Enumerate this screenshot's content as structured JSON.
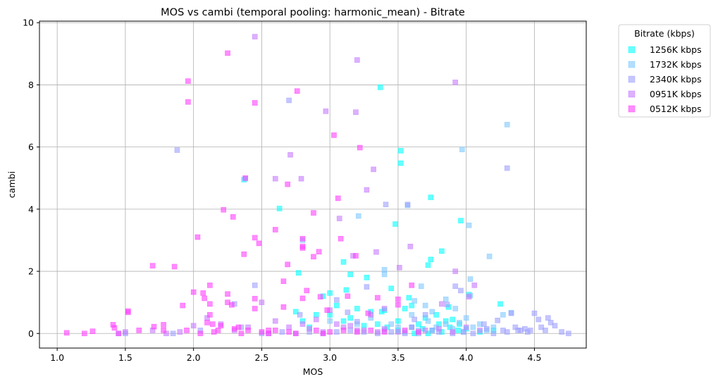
{
  "chart_data": {
    "type": "scatter",
    "title": "MOS vs cambi (temporal pooling: harmonic_mean) - Bitrate",
    "xlabel": "MOS",
    "ylabel": "cambi",
    "xlim": [
      0.87,
      4.88
    ],
    "ylim": [
      -0.47,
      10.05
    ],
    "xticks": [
      "1.0",
      "1.5",
      "2.0",
      "2.5",
      "3.0",
      "3.5",
      "4.0",
      "4.5"
    ],
    "yticks": [
      "0",
      "2",
      "4",
      "6",
      "8",
      "10"
    ],
    "grid": true,
    "marker": "square",
    "legend": {
      "title": "Bitrate (kbps)",
      "placement": "outside-upper-right"
    },
    "series": [
      {
        "name": "1256K kbps",
        "color": "#00ffff",
        "points": [
          [
            2.37,
            4.95
          ],
          [
            2.63,
            4.02
          ],
          [
            2.77,
            1.95
          ],
          [
            3.0,
            1.3
          ],
          [
            3.1,
            2.3
          ],
          [
            3.15,
            1.9
          ],
          [
            3.27,
            1.8
          ],
          [
            3.37,
            7.92
          ],
          [
            3.48,
            3.52
          ],
          [
            3.52,
            5.88
          ],
          [
            3.52,
            5.48
          ],
          [
            3.58,
            1.15
          ],
          [
            3.72,
            2.2
          ],
          [
            3.74,
            4.38
          ],
          [
            3.74,
            2.38
          ],
          [
            3.82,
            2.65
          ],
          [
            3.87,
            0.85
          ],
          [
            3.96,
            3.63
          ],
          [
            3.9,
            0.45
          ],
          [
            3.95,
            0.3
          ],
          [
            4.02,
            1.25
          ],
          [
            4.25,
            0.95
          ],
          [
            2.8,
            0.4
          ],
          [
            2.9,
            0.6
          ],
          [
            3.05,
            0.9
          ],
          [
            3.12,
            1.4
          ],
          [
            3.2,
            0.8
          ],
          [
            3.3,
            0.7
          ],
          [
            3.4,
            0.75
          ],
          [
            3.45,
            1.45
          ],
          [
            3.55,
            0.8
          ],
          [
            3.6,
            0.9
          ],
          [
            3.65,
            0.3
          ],
          [
            3.7,
            0.5
          ],
          [
            3.78,
            0.6
          ],
          [
            3.85,
            0.4
          ],
          [
            2.85,
            0.2
          ],
          [
            2.95,
            1.2
          ],
          [
            3.1,
            0.4
          ],
          [
            3.25,
            0.25
          ],
          [
            3.35,
            0.3
          ],
          [
            3.42,
            0.2
          ],
          [
            3.5,
            0.1
          ],
          [
            3.6,
            0.2
          ],
          [
            3.68,
            0.15
          ],
          [
            3.75,
            0.1
          ],
          [
            3.82,
            0.05
          ],
          [
            3.88,
            0.2
          ],
          [
            3.94,
            0.1
          ],
          [
            4.0,
            0.15
          ],
          [
            4.1,
            0.05
          ],
          [
            4.2,
            0.1
          ],
          [
            2.75,
            0.7
          ],
          [
            3.0,
            0.6
          ],
          [
            3.15,
            0.5
          ],
          [
            3.38,
            0.7
          ],
          [
            3.5,
            0.4
          ],
          [
            3.62,
            0.0
          ],
          [
            3.72,
            0.0
          ],
          [
            3.8,
            0.3
          ]
        ]
      },
      {
        "name": "1732K kbps",
        "color": "#80c8ff",
        "points": [
          [
            2.38,
            4.98
          ],
          [
            2.8,
            3.0
          ],
          [
            3.21,
            3.78
          ],
          [
            3.4,
            1.9
          ],
          [
            3.4,
            2.05
          ],
          [
            3.57,
            4.12
          ],
          [
            3.62,
            1.05
          ],
          [
            3.67,
            1.52
          ],
          [
            3.97,
            5.92
          ],
          [
            4.03,
            1.75
          ],
          [
            4.03,
            1.22
          ],
          [
            4.02,
            3.48
          ],
          [
            4.17,
            2.48
          ],
          [
            4.27,
            0.6
          ],
          [
            4.3,
            6.72
          ],
          [
            4.33,
            0.67
          ],
          [
            3.6,
            0.6
          ],
          [
            3.7,
            0.9
          ],
          [
            3.85,
            1.1
          ],
          [
            3.92,
            0.8
          ],
          [
            4.0,
            0.5
          ],
          [
            4.1,
            0.3
          ],
          [
            3.5,
            0.2
          ],
          [
            3.65,
            0.1
          ],
          [
            3.78,
            0.2
          ],
          [
            3.9,
            0.15
          ],
          [
            3.98,
            0.05
          ],
          [
            4.05,
            0.2
          ],
          [
            4.15,
            0.1
          ],
          [
            3.3,
            0.5
          ],
          [
            3.45,
            0.3
          ],
          [
            3.55,
            0.05
          ],
          [
            3.72,
            0.4
          ],
          [
            3.85,
            0.3
          ],
          [
            3.95,
            0.35
          ],
          [
            4.2,
            0.2
          ],
          [
            3.0,
            0.4
          ],
          [
            3.2,
            0.3
          ],
          [
            3.4,
            0.1
          ],
          [
            3.75,
            0.7
          ]
        ]
      },
      {
        "name": "2340K kbps",
        "color": "#9fa0ff",
        "points": [
          [
            1.88,
            5.9
          ],
          [
            2.7,
            7.5
          ],
          [
            2.45,
            1.55
          ],
          [
            2.3,
            0.95
          ],
          [
            2.35,
            0.2
          ],
          [
            2.55,
            0.0
          ],
          [
            2.78,
            0.6
          ],
          [
            3.05,
            1.08
          ],
          [
            3.13,
            0.68
          ],
          [
            3.2,
            0.38
          ],
          [
            3.27,
            1.5
          ],
          [
            3.41,
            4.15
          ],
          [
            3.57,
            4.15
          ],
          [
            3.62,
            0.45
          ],
          [
            3.7,
            0.6
          ],
          [
            3.86,
            0.93
          ],
          [
            3.92,
            1.52
          ],
          [
            3.96,
            1.38
          ],
          [
            4.13,
            0.3
          ],
          [
            4.23,
            0.42
          ],
          [
            4.27,
            0.1
          ],
          [
            4.3,
            5.32
          ],
          [
            4.33,
            0.65
          ],
          [
            4.36,
            0.2
          ],
          [
            4.4,
            0.1
          ],
          [
            4.45,
            0.05
          ],
          [
            4.5,
            0.65
          ],
          [
            4.53,
            0.45
          ],
          [
            4.55,
            0.2
          ],
          [
            4.58,
            0.1
          ],
          [
            4.6,
            0.5
          ],
          [
            4.62,
            0.35
          ],
          [
            4.65,
            0.25
          ],
          [
            4.7,
            0.05
          ],
          [
            4.75,
            0.0
          ],
          [
            4.47,
            0.1
          ],
          [
            4.43,
            0.15
          ],
          [
            4.38,
            0.1
          ],
          [
            4.3,
            0.05
          ],
          [
            4.2,
            0.0
          ],
          [
            4.15,
            0.15
          ],
          [
            4.05,
            0.0
          ],
          [
            3.98,
            0.05
          ],
          [
            3.9,
            0.0
          ],
          [
            3.8,
            0.05
          ],
          [
            3.75,
            0.1
          ],
          [
            3.65,
            0.0
          ],
          [
            3.55,
            0.0
          ],
          [
            3.45,
            0.05
          ],
          [
            3.35,
            0.0
          ],
          [
            3.25,
            0.05
          ],
          [
            3.15,
            0.1
          ],
          [
            3.05,
            0.05
          ],
          [
            2.95,
            0.0
          ],
          [
            2.85,
            0.05
          ],
          [
            2.75,
            0.0
          ],
          [
            2.65,
            0.05
          ],
          [
            2.5,
            0.0
          ],
          [
            1.45,
            0.0
          ],
          [
            1.5,
            0.0
          ],
          [
            1.85,
            0.0
          ],
          [
            2.05,
            0.1
          ]
        ]
      },
      {
        "name": "0951K kbps",
        "color": "#c77cff",
        "points": [
          [
            2.45,
            9.55
          ],
          [
            3.2,
            8.8
          ],
          [
            3.92,
            8.08
          ],
          [
            2.97,
            7.15
          ],
          [
            3.19,
            7.12
          ],
          [
            2.71,
            5.75
          ],
          [
            2.6,
            4.98
          ],
          [
            2.79,
            4.98
          ],
          [
            3.32,
            5.28
          ],
          [
            3.27,
            4.62
          ],
          [
            3.07,
            3.7
          ],
          [
            3.59,
            2.8
          ],
          [
            3.34,
            2.62
          ],
          [
            3.17,
            2.5
          ],
          [
            3.51,
            2.12
          ],
          [
            3.92,
            2.0
          ],
          [
            4.06,
            1.55
          ],
          [
            4.02,
            1.18
          ],
          [
            3.82,
            0.95
          ],
          [
            3.4,
            0.8
          ],
          [
            3.3,
            0.6
          ],
          [
            3.0,
            0.75
          ],
          [
            2.9,
            0.45
          ],
          [
            2.8,
            0.3
          ],
          [
            2.6,
            0.4
          ],
          [
            2.5,
            1.0
          ],
          [
            2.4,
            0.2
          ],
          [
            2.3,
            0.1
          ],
          [
            2.2,
            0.3
          ],
          [
            2.1,
            0.5
          ],
          [
            2.0,
            0.25
          ],
          [
            1.9,
            0.05
          ],
          [
            1.8,
            0.0
          ],
          [
            1.7,
            0.1
          ],
          [
            1.5,
            0.05
          ],
          [
            3.1,
            0.2
          ],
          [
            3.2,
            0.1
          ],
          [
            3.4,
            0.15
          ],
          [
            3.5,
            0.05
          ],
          [
            3.6,
            0.2
          ],
          [
            3.7,
            0.1
          ],
          [
            3.8,
            0.15
          ],
          [
            3.9,
            0.05
          ],
          [
            4.0,
            0.2
          ],
          [
            4.1,
            0.1
          ],
          [
            2.7,
            0.2
          ],
          [
            2.85,
            0.15
          ],
          [
            2.95,
            0.05
          ],
          [
            3.05,
            0.3
          ],
          [
            3.15,
            0.25
          ],
          [
            3.25,
            0.1
          ],
          [
            3.35,
            0.05
          ]
        ]
      },
      {
        "name": "0512K kbps",
        "color": "#ff40ff",
        "points": [
          [
            1.07,
            0.02
          ],
          [
            1.2,
            0.0
          ],
          [
            1.26,
            0.07
          ],
          [
            1.41,
            0.28
          ],
          [
            1.42,
            0.18
          ],
          [
            1.45,
            0.0
          ],
          [
            1.52,
            0.68
          ],
          [
            1.52,
            0.72
          ],
          [
            1.6,
            0.1
          ],
          [
            1.7,
            2.18
          ],
          [
            1.71,
            0.22
          ],
          [
            1.78,
            0.1
          ],
          [
            1.78,
            0.28
          ],
          [
            1.86,
            2.15
          ],
          [
            1.92,
            0.9
          ],
          [
            1.96,
            8.12
          ],
          [
            1.96,
            7.45
          ],
          [
            2.0,
            1.33
          ],
          [
            2.03,
            3.1
          ],
          [
            2.07,
            1.3
          ],
          [
            2.08,
            1.13
          ],
          [
            2.12,
            1.55
          ],
          [
            2.12,
            0.95
          ],
          [
            2.12,
            0.6
          ],
          [
            2.14,
            0.3
          ],
          [
            2.18,
            0.1
          ],
          [
            2.22,
            3.98
          ],
          [
            2.25,
            9.02
          ],
          [
            2.25,
            1.27
          ],
          [
            2.25,
            1.0
          ],
          [
            2.28,
            0.92
          ],
          [
            2.29,
            3.75
          ],
          [
            2.33,
            0.2
          ],
          [
            2.37,
            2.55
          ],
          [
            2.38,
            5.0
          ],
          [
            2.45,
            7.42
          ],
          [
            2.45,
            3.08
          ],
          [
            2.45,
            1.12
          ],
          [
            2.45,
            0.8
          ],
          [
            2.48,
            2.9
          ],
          [
            2.55,
            0.1
          ],
          [
            2.6,
            3.34
          ],
          [
            2.66,
            0.85
          ],
          [
            2.66,
            1.68
          ],
          [
            2.69,
            4.8
          ],
          [
            2.69,
            2.22
          ],
          [
            2.76,
            7.8
          ],
          [
            2.8,
            3.05
          ],
          [
            2.8,
            2.8
          ],
          [
            2.8,
            2.75
          ],
          [
            2.8,
            1.13
          ],
          [
            2.83,
            1.38
          ],
          [
            2.88,
            3.88
          ],
          [
            2.88,
            2.47
          ],
          [
            2.92,
            2.63
          ],
          [
            2.93,
            1.18
          ],
          [
            2.98,
            0.75
          ],
          [
            3.03,
            6.38
          ],
          [
            3.06,
            4.35
          ],
          [
            3.08,
            3.05
          ],
          [
            3.13,
            1.2
          ],
          [
            3.19,
            2.5
          ],
          [
            3.22,
            5.98
          ],
          [
            3.28,
            0.65
          ],
          [
            3.35,
            1.15
          ],
          [
            3.5,
            1.1
          ],
          [
            3.5,
            0.92
          ],
          [
            3.6,
            1.55
          ],
          [
            2.1,
            0.35
          ],
          [
            2.2,
            0.25
          ],
          [
            2.3,
            0.15
          ],
          [
            2.4,
            0.1
          ],
          [
            2.5,
            0.05
          ],
          [
            2.6,
            0.1
          ],
          [
            2.7,
            0.05
          ],
          [
            2.9,
            0.1
          ],
          [
            3.0,
            0.05
          ],
          [
            3.1,
            0.1
          ],
          [
            3.2,
            0.05
          ],
          [
            3.3,
            0.1
          ],
          [
            3.4,
            0.05
          ],
          [
            3.55,
            0.1
          ],
          [
            3.65,
            0.05
          ],
          [
            1.95,
            0.1
          ],
          [
            2.05,
            0.0
          ],
          [
            2.15,
            0.05
          ],
          [
            2.35,
            0.0
          ],
          [
            2.55,
            0.0
          ],
          [
            2.75,
            0.0
          ],
          [
            2.95,
            0.0
          ]
        ]
      }
    ]
  }
}
